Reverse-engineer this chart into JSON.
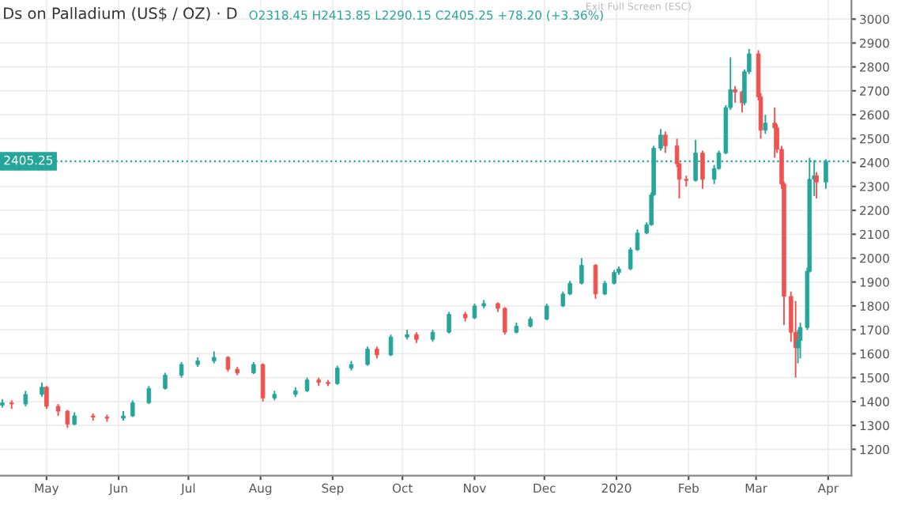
{
  "chart_data": {
    "type": "candlestick",
    "title": "Ds on Palladium (US$ / OZ) · D",
    "subtitle": "O2318.45 H2413.85 L2290.15 C2405.25 +78.20 (+3.36%)",
    "annotations": [
      "Exit Full Screen (ESC)"
    ],
    "x": [
      "2019-04-12",
      "2019-04-16",
      "2019-04-22",
      "2019-04-29",
      "2019-05-01",
      "2019-05-06",
      "2019-05-10",
      "2019-05-13",
      "2019-05-21",
      "2019-05-27",
      "2019-06-03",
      "2019-06-07",
      "2019-06-14",
      "2019-06-21",
      "2019-06-28",
      "2019-07-05",
      "2019-07-12",
      "2019-07-18",
      "2019-07-22",
      "2019-07-29",
      "2019-08-02",
      "2019-08-07",
      "2019-08-16",
      "2019-08-21",
      "2019-08-26",
      "2019-08-30",
      "2019-09-03",
      "2019-09-09",
      "2019-09-16",
      "2019-09-20",
      "2019-09-26",
      "2019-10-03",
      "2019-10-07",
      "2019-10-14",
      "2019-10-21",
      "2019-10-28",
      "2019-11-01",
      "2019-11-05",
      "2019-11-11",
      "2019-11-14",
      "2019-11-19",
      "2019-11-25",
      "2019-12-02",
      "2019-12-09",
      "2019-12-12",
      "2019-12-17",
      "2019-12-23",
      "2019-12-27",
      "2019-12-31",
      "2020-01-02",
      "2020-01-07",
      "2020-01-10",
      "2020-01-14",
      "2020-01-16",
      "2020-01-17",
      "2020-01-20",
      "2020-01-22",
      "2020-01-27",
      "2020-01-28",
      "2020-01-31",
      "2020-02-04",
      "2020-02-07",
      "2020-02-12",
      "2020-02-14",
      "2020-02-17",
      "2020-02-19",
      "2020-02-21",
      "2020-02-24",
      "2020-02-25",
      "2020-02-27",
      "2020-03-02",
      "2020-03-03",
      "2020-03-05",
      "2020-03-09",
      "2020-03-10",
      "2020-03-12",
      "2020-03-13",
      "2020-03-16",
      "2020-03-18",
      "2020-03-19",
      "2020-03-20",
      "2020-03-23",
      "2020-03-24",
      "2020-03-26",
      "2020-03-27",
      "2020-03-31"
    ],
    "ohlc": [
      [
        1385,
        1410,
        1375,
        1395
      ],
      [
        1395,
        1405,
        1370,
        1390
      ],
      [
        1390,
        1445,
        1380,
        1430
      ],
      [
        1430,
        1480,
        1420,
        1460
      ],
      [
        1460,
        1465,
        1370,
        1380
      ],
      [
        1380,
        1390,
        1340,
        1360
      ],
      [
        1360,
        1365,
        1290,
        1305
      ],
      [
        1305,
        1355,
        1300,
        1340
      ],
      [
        1340,
        1350,
        1320,
        1335
      ],
      [
        1335,
        1345,
        1315,
        1330
      ],
      [
        1330,
        1360,
        1320,
        1340
      ],
      [
        1340,
        1405,
        1335,
        1395
      ],
      [
        1395,
        1465,
        1390,
        1455
      ],
      [
        1455,
        1520,
        1450,
        1510
      ],
      [
        1510,
        1565,
        1500,
        1555
      ],
      [
        1555,
        1585,
        1545,
        1570
      ],
      [
        1570,
        1610,
        1560,
        1585
      ],
      [
        1585,
        1590,
        1525,
        1535
      ],
      [
        1535,
        1545,
        1510,
        1520
      ],
      [
        1520,
        1565,
        1515,
        1555
      ],
      [
        1555,
        1560,
        1400,
        1415
      ],
      [
        1415,
        1445,
        1405,
        1430
      ],
      [
        1430,
        1460,
        1420,
        1445
      ],
      [
        1445,
        1500,
        1440,
        1490
      ],
      [
        1490,
        1500,
        1465,
        1480
      ],
      [
        1480,
        1490,
        1465,
        1475
      ],
      [
        1475,
        1550,
        1470,
        1540
      ],
      [
        1540,
        1570,
        1530,
        1555
      ],
      [
        1555,
        1630,
        1550,
        1620
      ],
      [
        1620,
        1630,
        1580,
        1595
      ],
      [
        1595,
        1680,
        1590,
        1670
      ],
      [
        1670,
        1700,
        1660,
        1680
      ],
      [
        1680,
        1690,
        1645,
        1660
      ],
      [
        1660,
        1700,
        1650,
        1690
      ],
      [
        1690,
        1775,
        1685,
        1765
      ],
      [
        1765,
        1775,
        1735,
        1750
      ],
      [
        1750,
        1810,
        1745,
        1800
      ],
      [
        1800,
        1825,
        1790,
        1810
      ],
      [
        1810,
        1815,
        1775,
        1790
      ],
      [
        1790,
        1795,
        1680,
        1690
      ],
      [
        1690,
        1730,
        1685,
        1715
      ],
      [
        1715,
        1755,
        1710,
        1745
      ],
      [
        1745,
        1810,
        1740,
        1800
      ],
      [
        1800,
        1860,
        1795,
        1850
      ],
      [
        1850,
        1905,
        1845,
        1895
      ],
      [
        1895,
        2000,
        1890,
        1970
      ],
      [
        1970,
        1975,
        1830,
        1850
      ],
      [
        1850,
        1905,
        1845,
        1895
      ],
      [
        1895,
        1950,
        1890,
        1940
      ],
      [
        1940,
        1965,
        1930,
        1955
      ],
      [
        1955,
        2045,
        1950,
        2035
      ],
      [
        2035,
        2120,
        2030,
        2105
      ],
      [
        2105,
        2150,
        2100,
        2140
      ],
      [
        2140,
        2275,
        2135,
        2265
      ],
      [
        2265,
        2470,
        2260,
        2460
      ],
      [
        2460,
        2540,
        2450,
        2515
      ],
      [
        2515,
        2530,
        2440,
        2470
      ],
      [
        2470,
        2500,
        2380,
        2395
      ],
      [
        2395,
        2400,
        2250,
        2330
      ],
      [
        2330,
        2345,
        2300,
        2325
      ],
      [
        2325,
        2495,
        2320,
        2440
      ],
      [
        2440,
        2450,
        2290,
        2330
      ],
      [
        2330,
        2390,
        2310,
        2375
      ],
      [
        2375,
        2450,
        2370,
        2440
      ],
      [
        2440,
        2640,
        2435,
        2630
      ],
      [
        2630,
        2840,
        2620,
        2705
      ],
      [
        2705,
        2720,
        2650,
        2695
      ],
      [
        2695,
        2700,
        2610,
        2650
      ],
      [
        2650,
        2790,
        2640,
        2780
      ],
      [
        2780,
        2875,
        2770,
        2855
      ],
      [
        2855,
        2870,
        2660,
        2675
      ],
      [
        2675,
        2690,
        2500,
        2535
      ],
      [
        2535,
        2600,
        2520,
        2565
      ],
      [
        2565,
        2630,
        2420,
        2545
      ],
      [
        2545,
        2560,
        2440,
        2455
      ],
      [
        2455,
        2470,
        2290,
        2310
      ],
      [
        2310,
        2320,
        1720,
        1840
      ],
      [
        1840,
        1860,
        1650,
        1690
      ],
      [
        1690,
        1820,
        1500,
        1625
      ],
      [
        1625,
        1700,
        1560,
        1655
      ],
      [
        1655,
        1730,
        1580,
        1710
      ],
      [
        1710,
        1960,
        1700,
        1945
      ],
      [
        1945,
        2420,
        1940,
        2330
      ],
      [
        2330,
        2410,
        2260,
        2345
      ],
      [
        2345,
        2360,
        2250,
        2318.45
      ],
      [
        2318.45,
        2413.85,
        2290.15,
        2405.25
      ]
    ],
    "colors": [
      "#26a69a",
      "#ef5350",
      "#26a69a",
      "#26a69a",
      "#ef5350",
      "#ef5350",
      "#ef5350",
      "#26a69a",
      "#ef5350",
      "#ef5350",
      "#26a69a",
      "#26a69a",
      "#26a69a",
      "#26a69a",
      "#26a69a",
      "#26a69a",
      "#26a69a",
      "#ef5350",
      "#ef5350",
      "#26a69a",
      "#ef5350",
      "#26a69a",
      "#26a69a",
      "#26a69a",
      "#ef5350",
      "#ef5350",
      "#26a69a",
      "#26a69a",
      "#26a69a",
      "#ef5350",
      "#26a69a",
      "#26a69a",
      "#ef5350",
      "#26a69a",
      "#26a69a",
      "#ef5350",
      "#26a69a",
      "#26a69a",
      "#ef5350",
      "#ef5350",
      "#26a69a",
      "#26a69a",
      "#26a69a",
      "#26a69a",
      "#26a69a",
      "#26a69a",
      "#ef5350",
      "#26a69a",
      "#26a69a",
      "#26a69a",
      "#26a69a",
      "#26a69a",
      "#26a69a",
      "#26a69a",
      "#26a69a",
      "#26a69a",
      "#ef5350",
      "#ef5350",
      "#ef5350",
      "#ef5350",
      "#26a69a",
      "#ef5350",
      "#26a69a",
      "#26a69a",
      "#26a69a",
      "#26a69a",
      "#ef5350",
      "#ef5350",
      "#26a69a",
      "#26a69a",
      "#ef5350",
      "#ef5350",
      "#26a69a",
      "#ef5350",
      "#ef5350",
      "#ef5350",
      "#ef5350",
      "#ef5350",
      "#ef5350",
      "#26a69a",
      "#26a69a",
      "#26a69a",
      "#26a69a",
      "#26a69a",
      "#ef5350",
      "#26a69a"
    ],
    "xlim": [
      "2019-04-11",
      "2020-04-11"
    ],
    "xticks": [
      {
        "value": "2019-05-01",
        "label": "May"
      },
      {
        "value": "2019-06-01",
        "label": "Jun"
      },
      {
        "value": "2019-07-01",
        "label": "Jul"
      },
      {
        "value": "2019-08-01",
        "label": "Aug"
      },
      {
        "value": "2019-09-01",
        "label": "Sep"
      },
      {
        "value": "2019-10-01",
        "label": "Oct"
      },
      {
        "value": "2019-11-01",
        "label": "Nov"
      },
      {
        "value": "2019-12-01",
        "label": "Dec"
      },
      {
        "value": "2020-01-01",
        "label": "2020"
      },
      {
        "value": "2020-02-01",
        "label": "Feb"
      },
      {
        "value": "2020-03-01",
        "label": "Mar"
      },
      {
        "value": "2020-04-01",
        "label": "Apr"
      }
    ],
    "ylim": [
      1090,
      3080
    ],
    "yticks": [
      1200,
      1300,
      1400,
      1500,
      1600,
      1700,
      1800,
      1900,
      2000,
      2100,
      2200,
      2300,
      2400,
      2500,
      2600,
      2700,
      2800,
      2900,
      3000
    ],
    "ref_lines": [
      {
        "axis": "y",
        "value": 2405.25,
        "label": "2405.25",
        "color": "#26a69a",
        "line_style": "dotted"
      }
    ],
    "grid": true
  }
}
